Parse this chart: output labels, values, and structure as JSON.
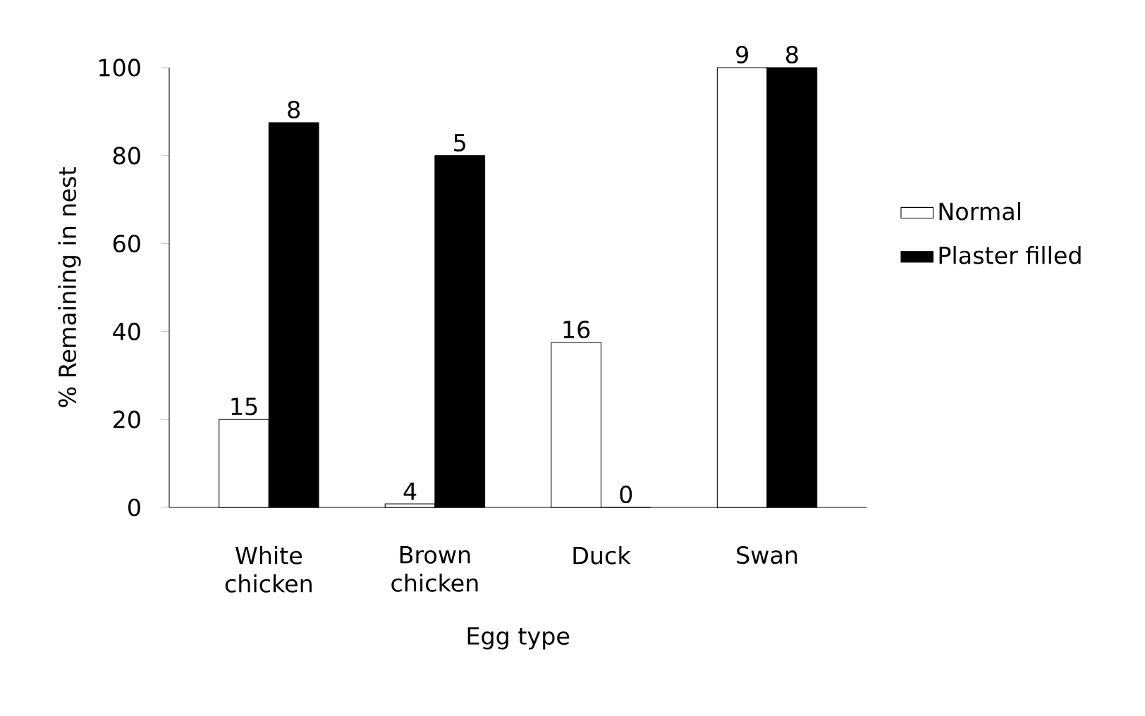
{
  "chart_data": {
    "type": "bar",
    "xlabel": "Egg type",
    "ylabel": "% Remaining in nest",
    "categories": [
      "White chicken",
      "Brown chicken",
      "Duck",
      "Swan"
    ],
    "series": [
      {
        "name": "Normal",
        "color": "#ffffff",
        "values": [
          20,
          0.8,
          37.5,
          100
        ]
      },
      {
        "name": "Plaster filled",
        "color": "#000000",
        "values": [
          87.5,
          80,
          0,
          100
        ]
      }
    ],
    "annotations": [
      {
        "text": "15",
        "x": "White chicken",
        "y": 20
      },
      {
        "text": "8",
        "x": "White chicken",
        "y": 87.5
      },
      {
        "text": "4",
        "x": "Brown chicken",
        "y": 0.8
      },
      {
        "text": "5",
        "x": "Brown chicken",
        "y": 80
      },
      {
        "text": "16",
        "x": "Duck",
        "y": 37.5
      },
      {
        "text": "0",
        "x": "Duck",
        "y": 0
      },
      {
        "text": "9",
        "x": "Swan",
        "y": 100
      },
      {
        "text": "8",
        "x": "Swan",
        "y": 100
      }
    ],
    "ylim": [
      0,
      100
    ],
    "yticks": [
      0,
      20,
      40,
      60,
      80,
      100
    ],
    "legend": "right"
  }
}
